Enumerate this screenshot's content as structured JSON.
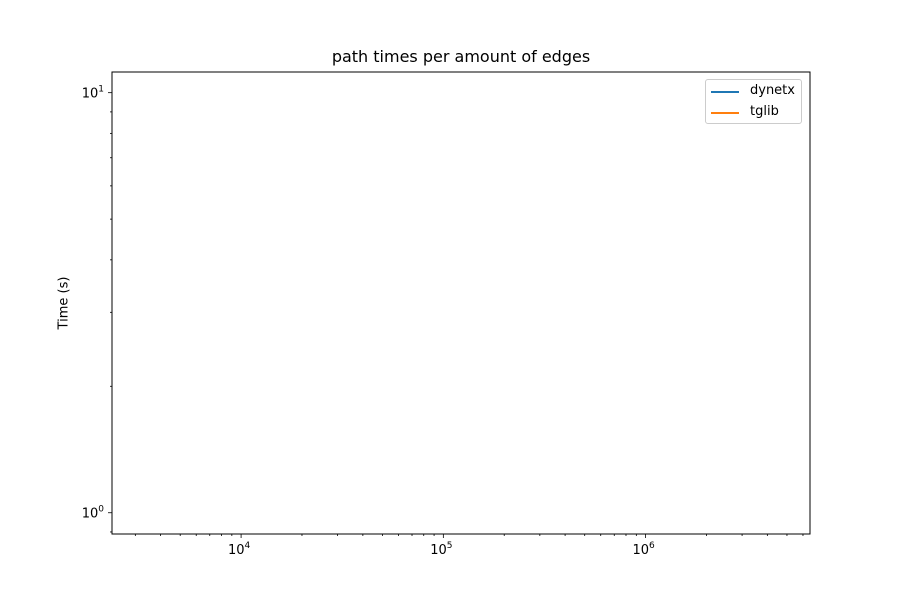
{
  "chart_data": {
    "type": "line",
    "title": "path times per amount of edges",
    "xlabel": "",
    "ylabel": "Time (s)",
    "xscale": "log",
    "yscale": "log",
    "xlim": [
      2300,
      6500000
    ],
    "ylim": [
      0.89,
      11.2
    ],
    "x_ticks": [
      {
        "base": "10",
        "exp": "4",
        "value": 10000
      },
      {
        "base": "10",
        "exp": "5",
        "value": 100000
      },
      {
        "base": "10",
        "exp": "6",
        "value": 1000000
      }
    ],
    "y_ticks": [
      {
        "base": "10",
        "exp": "0",
        "value": 1
      },
      {
        "base": "10",
        "exp": "1",
        "value": 10
      }
    ],
    "grid": false,
    "legend_position": "top-right",
    "series": [
      {
        "name": "dynetx",
        "color": "#1f77b4",
        "x": [],
        "y": []
      },
      {
        "name": "tglib",
        "color": "#ff7f0e",
        "x": [],
        "y": []
      }
    ]
  }
}
